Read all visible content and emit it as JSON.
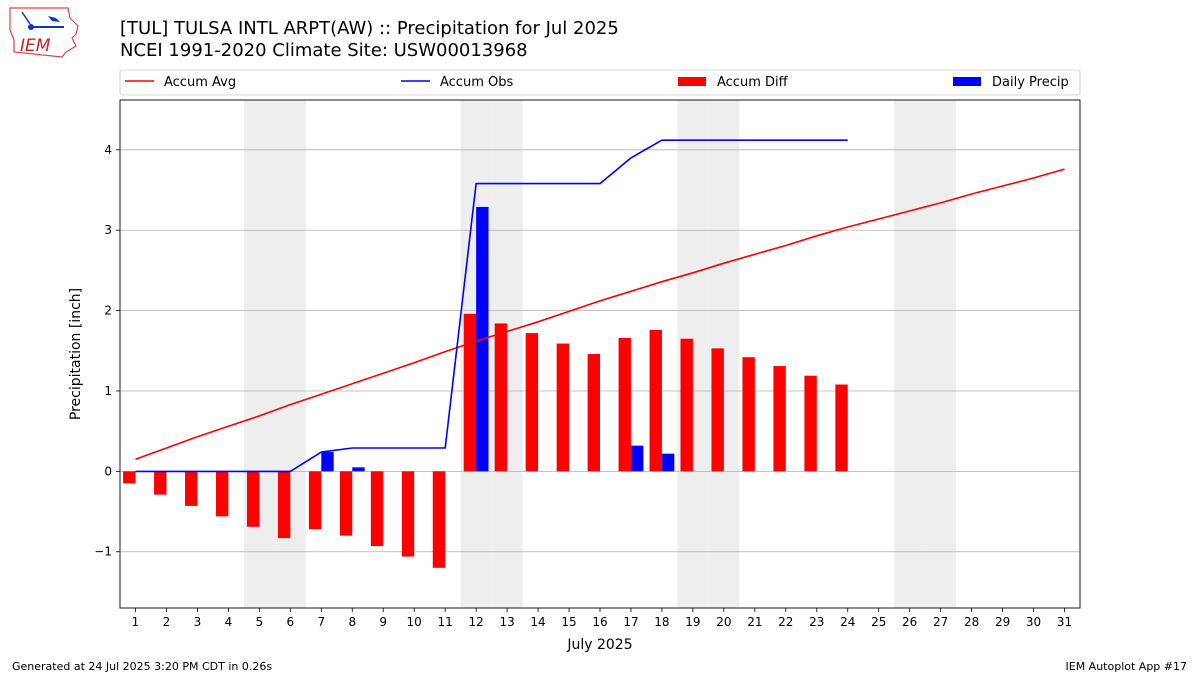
{
  "header": {
    "logo_text": "IEM",
    "title": "[TUL] TULSA INTL ARPT(AW) :: Precipitation for Jul 2025",
    "subtitle": "NCEI 1991-2020 Climate Site: USW00013968"
  },
  "footer": {
    "generated": "Generated at 24 Jul 2025 3:20 PM CDT in 0.26s",
    "app": "IEM Autoplot App #17"
  },
  "chart_data": {
    "type": "bar",
    "xlabel": "July 2025",
    "ylabel": "Precipitation [inch]",
    "xlim": [
      0.5,
      31.5
    ],
    "ylim": [
      -1.7,
      4.62
    ],
    "yticks": [
      -1,
      0,
      1,
      2,
      3,
      4
    ],
    "ytick_labels": [
      "−1",
      "0",
      "1",
      "2",
      "3",
      "4"
    ],
    "days": [
      1,
      2,
      3,
      4,
      5,
      6,
      7,
      8,
      9,
      10,
      11,
      12,
      13,
      14,
      15,
      16,
      17,
      18,
      19,
      20,
      21,
      22,
      23,
      24,
      25,
      26,
      27,
      28,
      29,
      30,
      31
    ],
    "weekend_days": [
      5,
      6,
      12,
      13,
      19,
      20,
      26,
      27
    ],
    "legend_position": "top",
    "grid": "y",
    "colors": {
      "accum_avg": "#ff0000",
      "accum_obs": "#0000ff",
      "accum_diff": "#ff0000",
      "daily_precip": "#0000ff",
      "weekend_shade": "#eeeeee",
      "grid": "#b0b0b0"
    },
    "series": [
      {
        "name": "Accum Avg",
        "kind": "line",
        "x": [
          1,
          2,
          3,
          4,
          5,
          6,
          7,
          8,
          9,
          10,
          11,
          12,
          13,
          14,
          15,
          16,
          17,
          18,
          19,
          20,
          21,
          22,
          23,
          24,
          25,
          26,
          27,
          28,
          29,
          30,
          31
        ],
        "values": [
          0.15,
          0.29,
          0.43,
          0.56,
          0.69,
          0.83,
          0.96,
          1.09,
          1.22,
          1.35,
          1.49,
          1.62,
          1.74,
          1.86,
          1.99,
          2.12,
          2.24,
          2.36,
          2.47,
          2.59,
          2.7,
          2.81,
          2.93,
          3.04,
          3.14,
          3.24,
          3.34,
          3.45,
          3.55,
          3.65,
          3.76
        ]
      },
      {
        "name": "Accum Obs",
        "kind": "line",
        "x": [
          1,
          2,
          3,
          4,
          5,
          6,
          7,
          8,
          9,
          10,
          11,
          12,
          13,
          14,
          15,
          16,
          17,
          18,
          19,
          20,
          21,
          22,
          23,
          24
        ],
        "values": [
          0,
          0,
          0,
          0,
          0,
          0,
          0.24,
          0.29,
          0.29,
          0.29,
          0.29,
          3.58,
          3.58,
          3.58,
          3.58,
          3.58,
          3.9,
          4.12,
          4.12,
          4.12,
          4.12,
          4.12,
          4.12,
          4.12
        ]
      },
      {
        "name": "Accum Diff",
        "kind": "bar",
        "x": [
          1,
          2,
          3,
          4,
          5,
          6,
          7,
          8,
          9,
          10,
          11,
          12,
          13,
          14,
          15,
          16,
          17,
          18,
          19,
          20,
          21,
          22,
          23,
          24
        ],
        "values": [
          -0.15,
          -0.29,
          -0.43,
          -0.56,
          -0.69,
          -0.83,
          -0.72,
          -0.8,
          -0.93,
          -1.06,
          -1.2,
          1.96,
          1.84,
          1.72,
          1.59,
          1.46,
          1.66,
          1.76,
          1.65,
          1.53,
          1.42,
          1.31,
          1.19,
          1.08
        ]
      },
      {
        "name": "Daily Precip",
        "kind": "bar",
        "x": [
          1,
          2,
          3,
          4,
          5,
          6,
          7,
          8,
          9,
          10,
          11,
          12,
          13,
          14,
          15,
          16,
          17,
          18,
          19,
          20,
          21,
          22,
          23,
          24
        ],
        "values": [
          0,
          0,
          0,
          0,
          0,
          0,
          0.24,
          0.05,
          0,
          0,
          0,
          3.29,
          0,
          0,
          0,
          0,
          0.32,
          0.22,
          0,
          0,
          0,
          0,
          0,
          0
        ]
      }
    ]
  }
}
